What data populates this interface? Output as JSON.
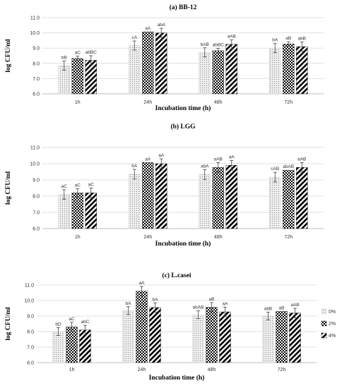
{
  "chart_data": [
    {
      "type": "bar",
      "title": "(a) BB-12",
      "ylabel": "log CFU/ml",
      "xlabel": "Incubation time (h)",
      "ylim": [
        6.0,
        11.0
      ],
      "yticks": [
        "6.0",
        "7.0",
        "8.0",
        "9.0",
        "10.0",
        "11.0"
      ],
      "categories": [
        "1h",
        "24h",
        "48h",
        "72h"
      ],
      "series": [
        {
          "values": [
            7.85,
            9.17,
            8.72,
            9.0
          ],
          "errors": [
            0.3,
            0.3,
            0.3,
            0.3
          ],
          "labels": [
            "bB",
            "cA",
            "bAB",
            "bA"
          ]
        },
        {
          "values": [
            8.32,
            10.07,
            8.83,
            9.27
          ],
          "errors": [
            0.15,
            0.0,
            0.15,
            0.15
          ],
          "labels": [
            "aC",
            "aA",
            "abBC",
            "aB"
          ]
        },
        {
          "values": [
            8.2,
            10.0,
            9.25,
            9.1
          ],
          "errors": [
            0.3,
            0.3,
            0.3,
            0.3
          ],
          "labels": [
            "abBC",
            "abA",
            "aAB",
            "abB"
          ]
        }
      ],
      "legend": null,
      "grid": true
    },
    {
      "type": "bar",
      "title": "(b) LGG",
      "ylabel": "log CFU/ml",
      "xlabel": "Incubation time (h)",
      "ylim": [
        6.0,
        11.0
      ],
      "yticks": [
        "6.0",
        "7.0",
        "8.0",
        "9.0",
        "10.0",
        "11.0"
      ],
      "categories": [
        "1h",
        "24h",
        "48h",
        "72h"
      ],
      "series": [
        {
          "values": [
            8.1,
            9.35,
            9.33,
            9.17
          ],
          "errors": [
            0.3,
            0.3,
            0.3,
            0.3
          ],
          "labels": [
            "aC",
            "bA",
            "abA",
            "cAB"
          ]
        },
        {
          "values": [
            8.2,
            10.07,
            9.77,
            9.6
          ],
          "errors": [
            0.25,
            0.0,
            0.3,
            0.0
          ],
          "labels": [
            "aC",
            "aA",
            "aAB",
            "abAB"
          ]
        },
        {
          "values": [
            8.2,
            10.0,
            9.9,
            9.77
          ],
          "errors": [
            0.3,
            0.3,
            0.3,
            0.3
          ],
          "labels": [
            "aC",
            "aA",
            "aA",
            "aAB"
          ]
        }
      ],
      "legend": null,
      "grid": true
    },
    {
      "type": "bar",
      "title": "(c) L.casei",
      "ylabel": "log CFU/ml",
      "xlabel": "Incubation time (h)",
      "ylim": [
        6.0,
        11.0
      ],
      "yticks": [
        "6.0",
        "7.0",
        "8.0",
        "9.0",
        "10.0",
        "11.0"
      ],
      "categories": [
        "1h",
        "24h",
        "48h",
        "72h"
      ],
      "series": [
        {
          "name": "0%",
          "values": [
            8.0,
            9.35,
            9.08,
            9.0
          ],
          "errors": [
            0.25,
            0.25,
            0.25,
            0.25
          ],
          "labels": [
            "bD",
            "bA",
            "abAB",
            "abB"
          ]
        },
        {
          "name": "2%",
          "values": [
            8.3,
            10.6,
            9.57,
            9.3
          ],
          "errors": [
            0.3,
            0.3,
            0.3,
            0.0
          ],
          "labels": [
            "aC",
            "aA",
            "aB",
            "aB"
          ]
        },
        {
          "name": "4%",
          "values": [
            8.1,
            9.55,
            9.27,
            9.2
          ],
          "errors": [
            0.3,
            0.3,
            0.3,
            0.3
          ],
          "labels": [
            "abC",
            "bA",
            "aA",
            "aAB"
          ]
        }
      ],
      "legend": "right",
      "grid": true
    }
  ]
}
